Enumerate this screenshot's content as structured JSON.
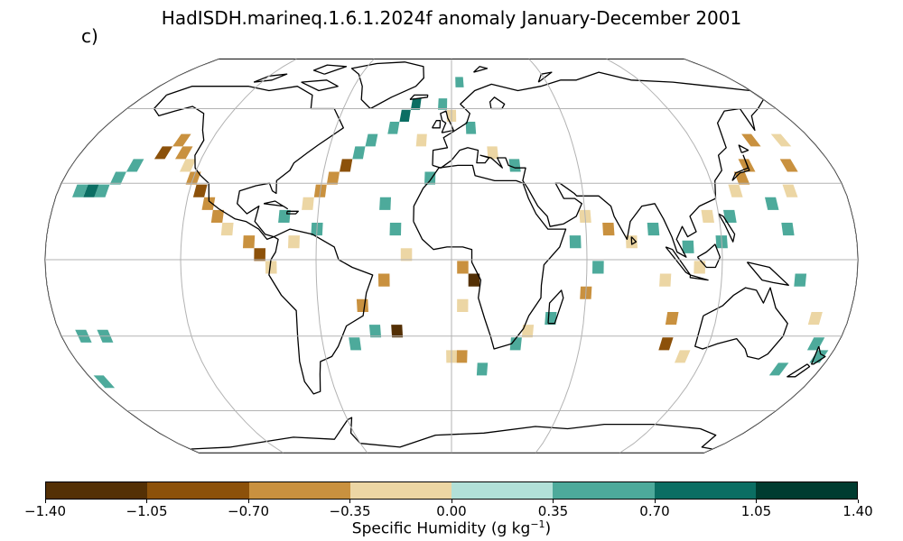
{
  "title": "HadISDH.marineq.1.6.1.2024f anomaly January-December 2001",
  "panel_label": "c)",
  "colorbar": {
    "label_main": "Specific Humidity (g kg",
    "label_exp": "−1",
    "label_close": ")",
    "ticks": [
      "−1.40",
      "−1.05",
      "−0.70",
      "−0.35",
      "0.00",
      "0.35",
      "0.70",
      "1.05",
      "1.40"
    ],
    "colors": [
      "#543005",
      "#8c510a",
      "#c9913f",
      "#ecd6a4",
      "#b2e0d8",
      "#4daa9b",
      "#0b6e63",
      "#003c30"
    ]
  },
  "map_data": {
    "projection": "Robinson",
    "grid_lon": [
      -180,
      -120,
      -60,
      0,
      60,
      120,
      180
    ],
    "grid_lat": [
      -60,
      -30,
      0,
      30,
      60
    ],
    "cells": [
      {
        "lon": -160,
        "lat": 27,
        "v": 0.4
      },
      {
        "lon": -165,
        "lat": 27,
        "v": 0.8
      },
      {
        "lon": -170,
        "lat": 27,
        "v": 0.6
      },
      {
        "lon": -155,
        "lat": 32,
        "v": 0.4
      },
      {
        "lon": -150,
        "lat": 37,
        "v": 0.5
      },
      {
        "lon": -140,
        "lat": 42,
        "v": -0.8
      },
      {
        "lon": -135,
        "lat": 47,
        "v": -0.6
      },
      {
        "lon": -130,
        "lat": 42,
        "v": -0.4
      },
      {
        "lon": -125,
        "lat": 37,
        "v": -0.3
      },
      {
        "lon": -120,
        "lat": 32,
        "v": -0.6
      },
      {
        "lon": -115,
        "lat": 27,
        "v": -0.8
      },
      {
        "lon": -110,
        "lat": 22,
        "v": -0.7
      },
      {
        "lon": -105,
        "lat": 17,
        "v": -0.6
      },
      {
        "lon": -100,
        "lat": 12,
        "v": -0.3
      },
      {
        "lon": -90,
        "lat": 7,
        "v": -0.6
      },
      {
        "lon": -85,
        "lat": 2,
        "v": -0.8
      },
      {
        "lon": -80,
        "lat": -3,
        "v": -0.3
      },
      {
        "lon": -75,
        "lat": 17,
        "v": 0.5
      },
      {
        "lon": -65,
        "lat": 22,
        "v": -0.3
      },
      {
        "lon": -60,
        "lat": 27,
        "v": -0.6
      },
      {
        "lon": -55,
        "lat": 32,
        "v": -0.4
      },
      {
        "lon": -50,
        "lat": 37,
        "v": -0.8
      },
      {
        "lon": -45,
        "lat": 42,
        "v": 0.4
      },
      {
        "lon": -40,
        "lat": 47,
        "v": 0.6
      },
      {
        "lon": -30,
        "lat": 52,
        "v": 0.5
      },
      {
        "lon": -25,
        "lat": 57,
        "v": 0.8
      },
      {
        "lon": -20,
        "lat": 62,
        "v": 1.0
      },
      {
        "lon": -15,
        "lat": 47,
        "v": -0.3
      },
      {
        "lon": -30,
        "lat": 22,
        "v": 0.5
      },
      {
        "lon": -25,
        "lat": 12,
        "v": 0.4
      },
      {
        "lon": -20,
        "lat": 2,
        "v": -0.3
      },
      {
        "lon": -30,
        "lat": -8,
        "v": -0.4
      },
      {
        "lon": -40,
        "lat": -18,
        "v": -0.7
      },
      {
        "lon": -35,
        "lat": -28,
        "v": 0.5
      },
      {
        "lon": -25,
        "lat": -28,
        "v": -1.1
      },
      {
        "lon": -45,
        "lat": -33,
        "v": 0.6
      },
      {
        "lon": -170,
        "lat": -30,
        "v": 0.4
      },
      {
        "lon": -160,
        "lat": -30,
        "v": 0.4
      },
      {
        "lon": -175,
        "lat": -48,
        "v": 0.7
      },
      {
        "lon": 5,
        "lat": -3,
        "v": -0.4
      },
      {
        "lon": 10,
        "lat": -8,
        "v": -1.1
      },
      {
        "lon": 5,
        "lat": -18,
        "v": -0.3
      },
      {
        "lon": 0,
        "lat": -38,
        "v": -0.3
      },
      {
        "lon": 5,
        "lat": -38,
        "v": -0.6
      },
      {
        "lon": 15,
        "lat": -43,
        "v": 0.4
      },
      {
        "lon": 30,
        "lat": -33,
        "v": 0.5
      },
      {
        "lon": 35,
        "lat": -28,
        "v": -0.3
      },
      {
        "lon": 45,
        "lat": -23,
        "v": 0.4
      },
      {
        "lon": 60,
        "lat": -13,
        "v": -0.6
      },
      {
        "lon": 65,
        "lat": -3,
        "v": 0.4
      },
      {
        "lon": 55,
        "lat": 7,
        "v": 0.5
      },
      {
        "lon": 60,
        "lat": 17,
        "v": -0.3
      },
      {
        "lon": 70,
        "lat": 12,
        "v": -0.4
      },
      {
        "lon": 80,
        "lat": 7,
        "v": -0.3
      },
      {
        "lon": 90,
        "lat": 12,
        "v": 0.4
      },
      {
        "lon": 95,
        "lat": -8,
        "v": -0.3
      },
      {
        "lon": 100,
        "lat": -23,
        "v": -0.6
      },
      {
        "lon": 100,
        "lat": -33,
        "v": -0.8
      },
      {
        "lon": 110,
        "lat": -38,
        "v": -0.3
      },
      {
        "lon": 120,
        "lat": 7,
        "v": 0.4
      },
      {
        "lon": 125,
        "lat": 17,
        "v": 0.5
      },
      {
        "lon": 130,
        "lat": 27,
        "v": -0.3
      },
      {
        "lon": 135,
        "lat": 32,
        "v": -0.6
      },
      {
        "lon": 140,
        "lat": 37,
        "v": -0.4
      },
      {
        "lon": 145,
        "lat": 22,
        "v": 0.6
      },
      {
        "lon": 150,
        "lat": 12,
        "v": 0.7
      },
      {
        "lon": 155,
        "lat": 27,
        "v": -0.3
      },
      {
        "lon": 160,
        "lat": 37,
        "v": -0.4
      },
      {
        "lon": 165,
        "lat": 47,
        "v": -0.3
      },
      {
        "lon": 150,
        "lat": 47,
        "v": -0.6
      },
      {
        "lon": 155,
        "lat": -8,
        "v": 0.4
      },
      {
        "lon": 165,
        "lat": -23,
        "v": -0.3
      },
      {
        "lon": 170,
        "lat": -33,
        "v": 0.5
      },
      {
        "lon": 175,
        "lat": -38,
        "v": 0.7
      },
      {
        "lon": 160,
        "lat": -43,
        "v": 0.4
      },
      {
        "lon": 30,
        "lat": 37,
        "v": 0.4
      },
      {
        "lon": 20,
        "lat": 42,
        "v": -0.3
      },
      {
        "lon": 10,
        "lat": 52,
        "v": 0.5
      },
      {
        "lon": 0,
        "lat": 57,
        "v": -0.3
      },
      {
        "lon": -5,
        "lat": 62,
        "v": 0.4
      },
      {
        "lon": 5,
        "lat": 72,
        "v": 0.5
      },
      {
        "lon": -10,
        "lat": 32,
        "v": 0.4
      },
      {
        "lon": -60,
        "lat": 12,
        "v": 0.4
      },
      {
        "lon": -70,
        "lat": 7,
        "v": -0.3
      },
      {
        "lon": 115,
        "lat": 17,
        "v": -0.3
      },
      {
        "lon": 105,
        "lat": 5,
        "v": 0.5
      },
      {
        "lon": 110,
        "lat": -3,
        "v": -0.3
      }
    ]
  }
}
